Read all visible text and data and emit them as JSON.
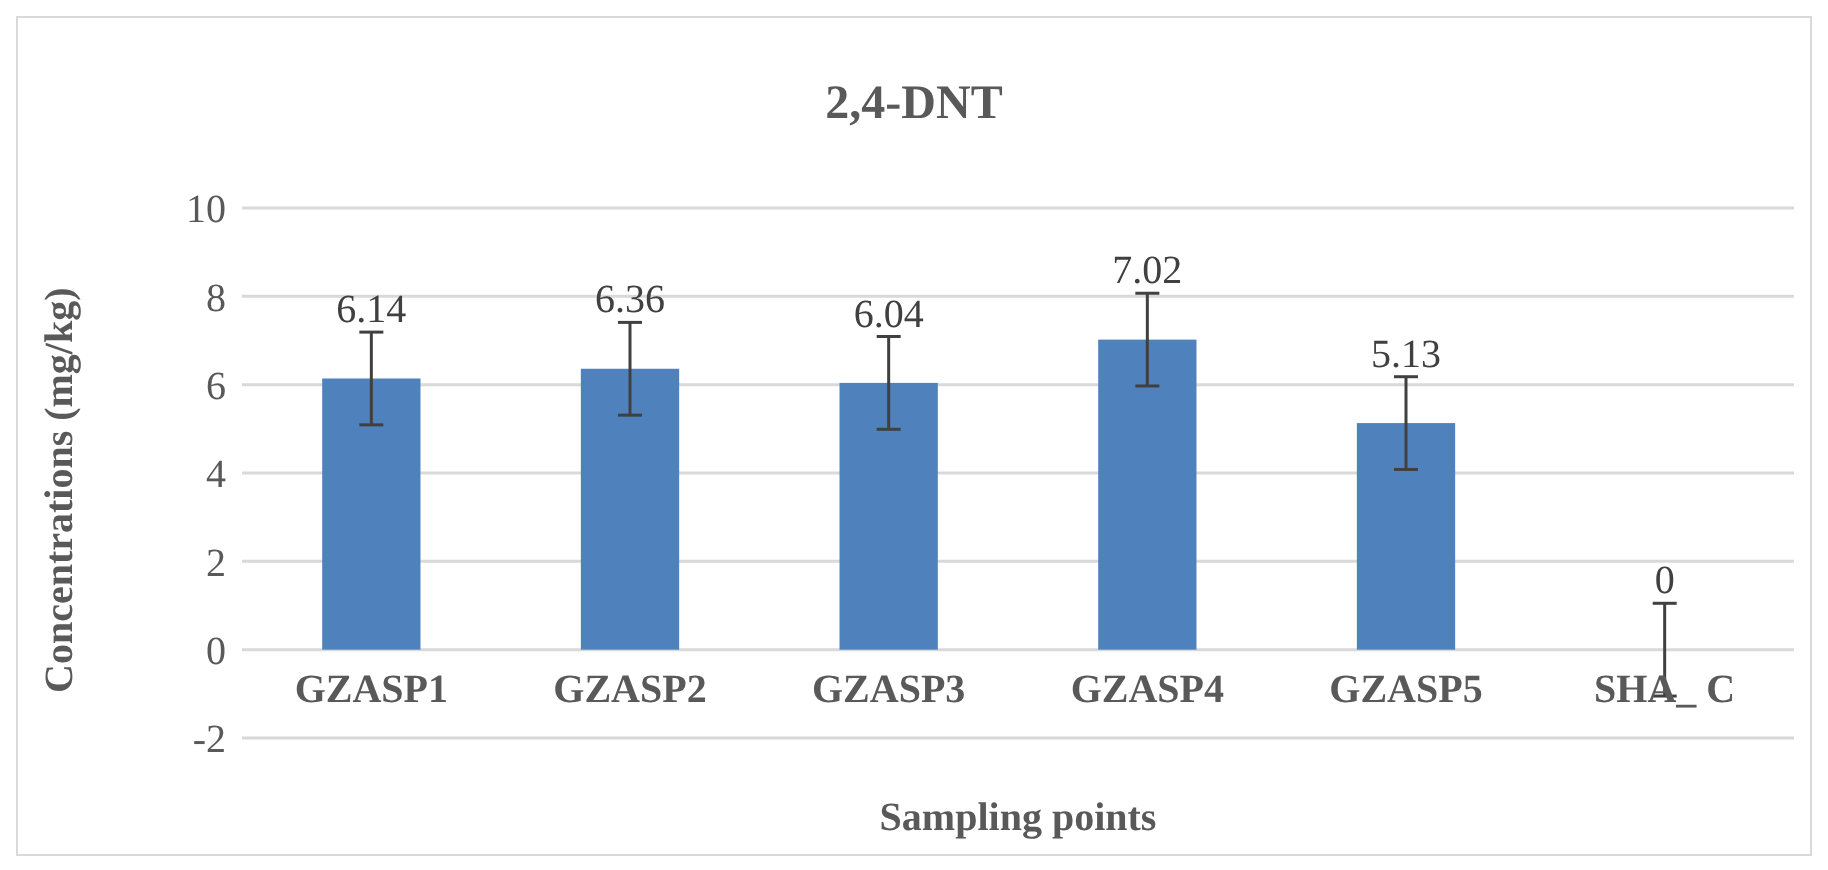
{
  "chart_data": {
    "type": "bar",
    "title": "2,4-DNT",
    "xlabel": "Sampling points",
    "ylabel": "Concentrations (mg/kg)",
    "categories": [
      "GZASP1",
      "GZASP2",
      "GZASP3",
      "GZASP4",
      "GZASP5",
      "SHA_ C"
    ],
    "values": [
      6.14,
      6.36,
      6.04,
      7.02,
      5.13,
      0
    ],
    "errors": [
      1.05,
      1.05,
      1.05,
      1.05,
      1.05,
      1.05
    ],
    "color": "#4f81bd",
    "ylim": [
      -2,
      10
    ],
    "yticks": [
      -2,
      0,
      2,
      4,
      6,
      8,
      10
    ],
    "grid": "y",
    "data_labels": true
  }
}
